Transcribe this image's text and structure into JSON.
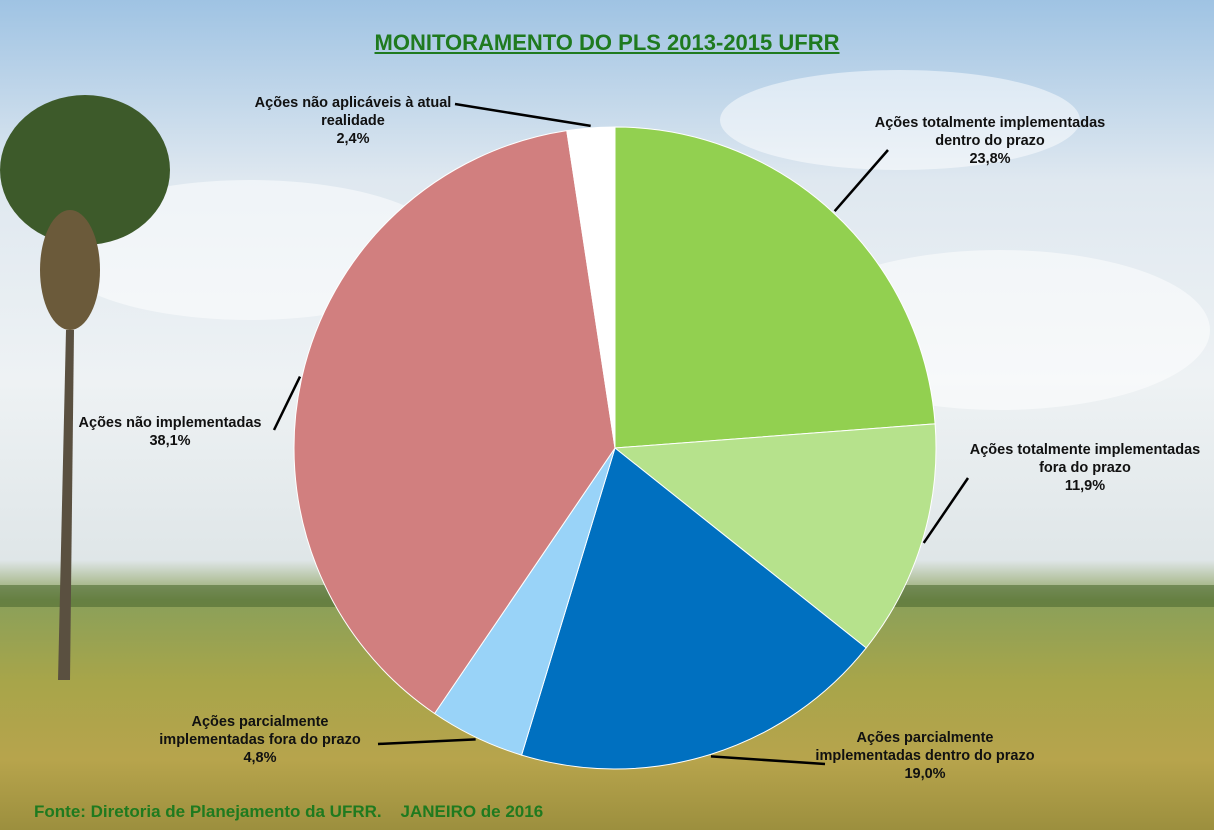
{
  "chart_data": {
    "type": "pie",
    "title": "MONITORAMENTO DO PLS 2013-2015 UFRR",
    "categories": [
      "Ações totalmente implementadas dentro do prazo",
      "Ações totalmente implementadas fora do prazo",
      "Ações parcialmente implementadas dentro do prazo",
      "Ações parcialmente implementadas fora do prazo",
      "Ações não implementadas",
      "Ações não aplicáveis à atual realidade"
    ],
    "values": [
      23.8,
      11.9,
      19.0,
      4.8,
      38.1,
      2.4
    ],
    "value_labels": [
      "23,8%",
      "11,9%",
      "19,0%",
      "4,8%",
      "38,1%",
      "2,4%"
    ],
    "colors": [
      "#92d050",
      "#b6e28c",
      "#0070c0",
      "#99d3f8",
      "#d17f7f",
      "#ffffff"
    ],
    "source": "Fonte: Diretoria de Planejamento da UFRR.    JANEIRO de 2016"
  }
}
